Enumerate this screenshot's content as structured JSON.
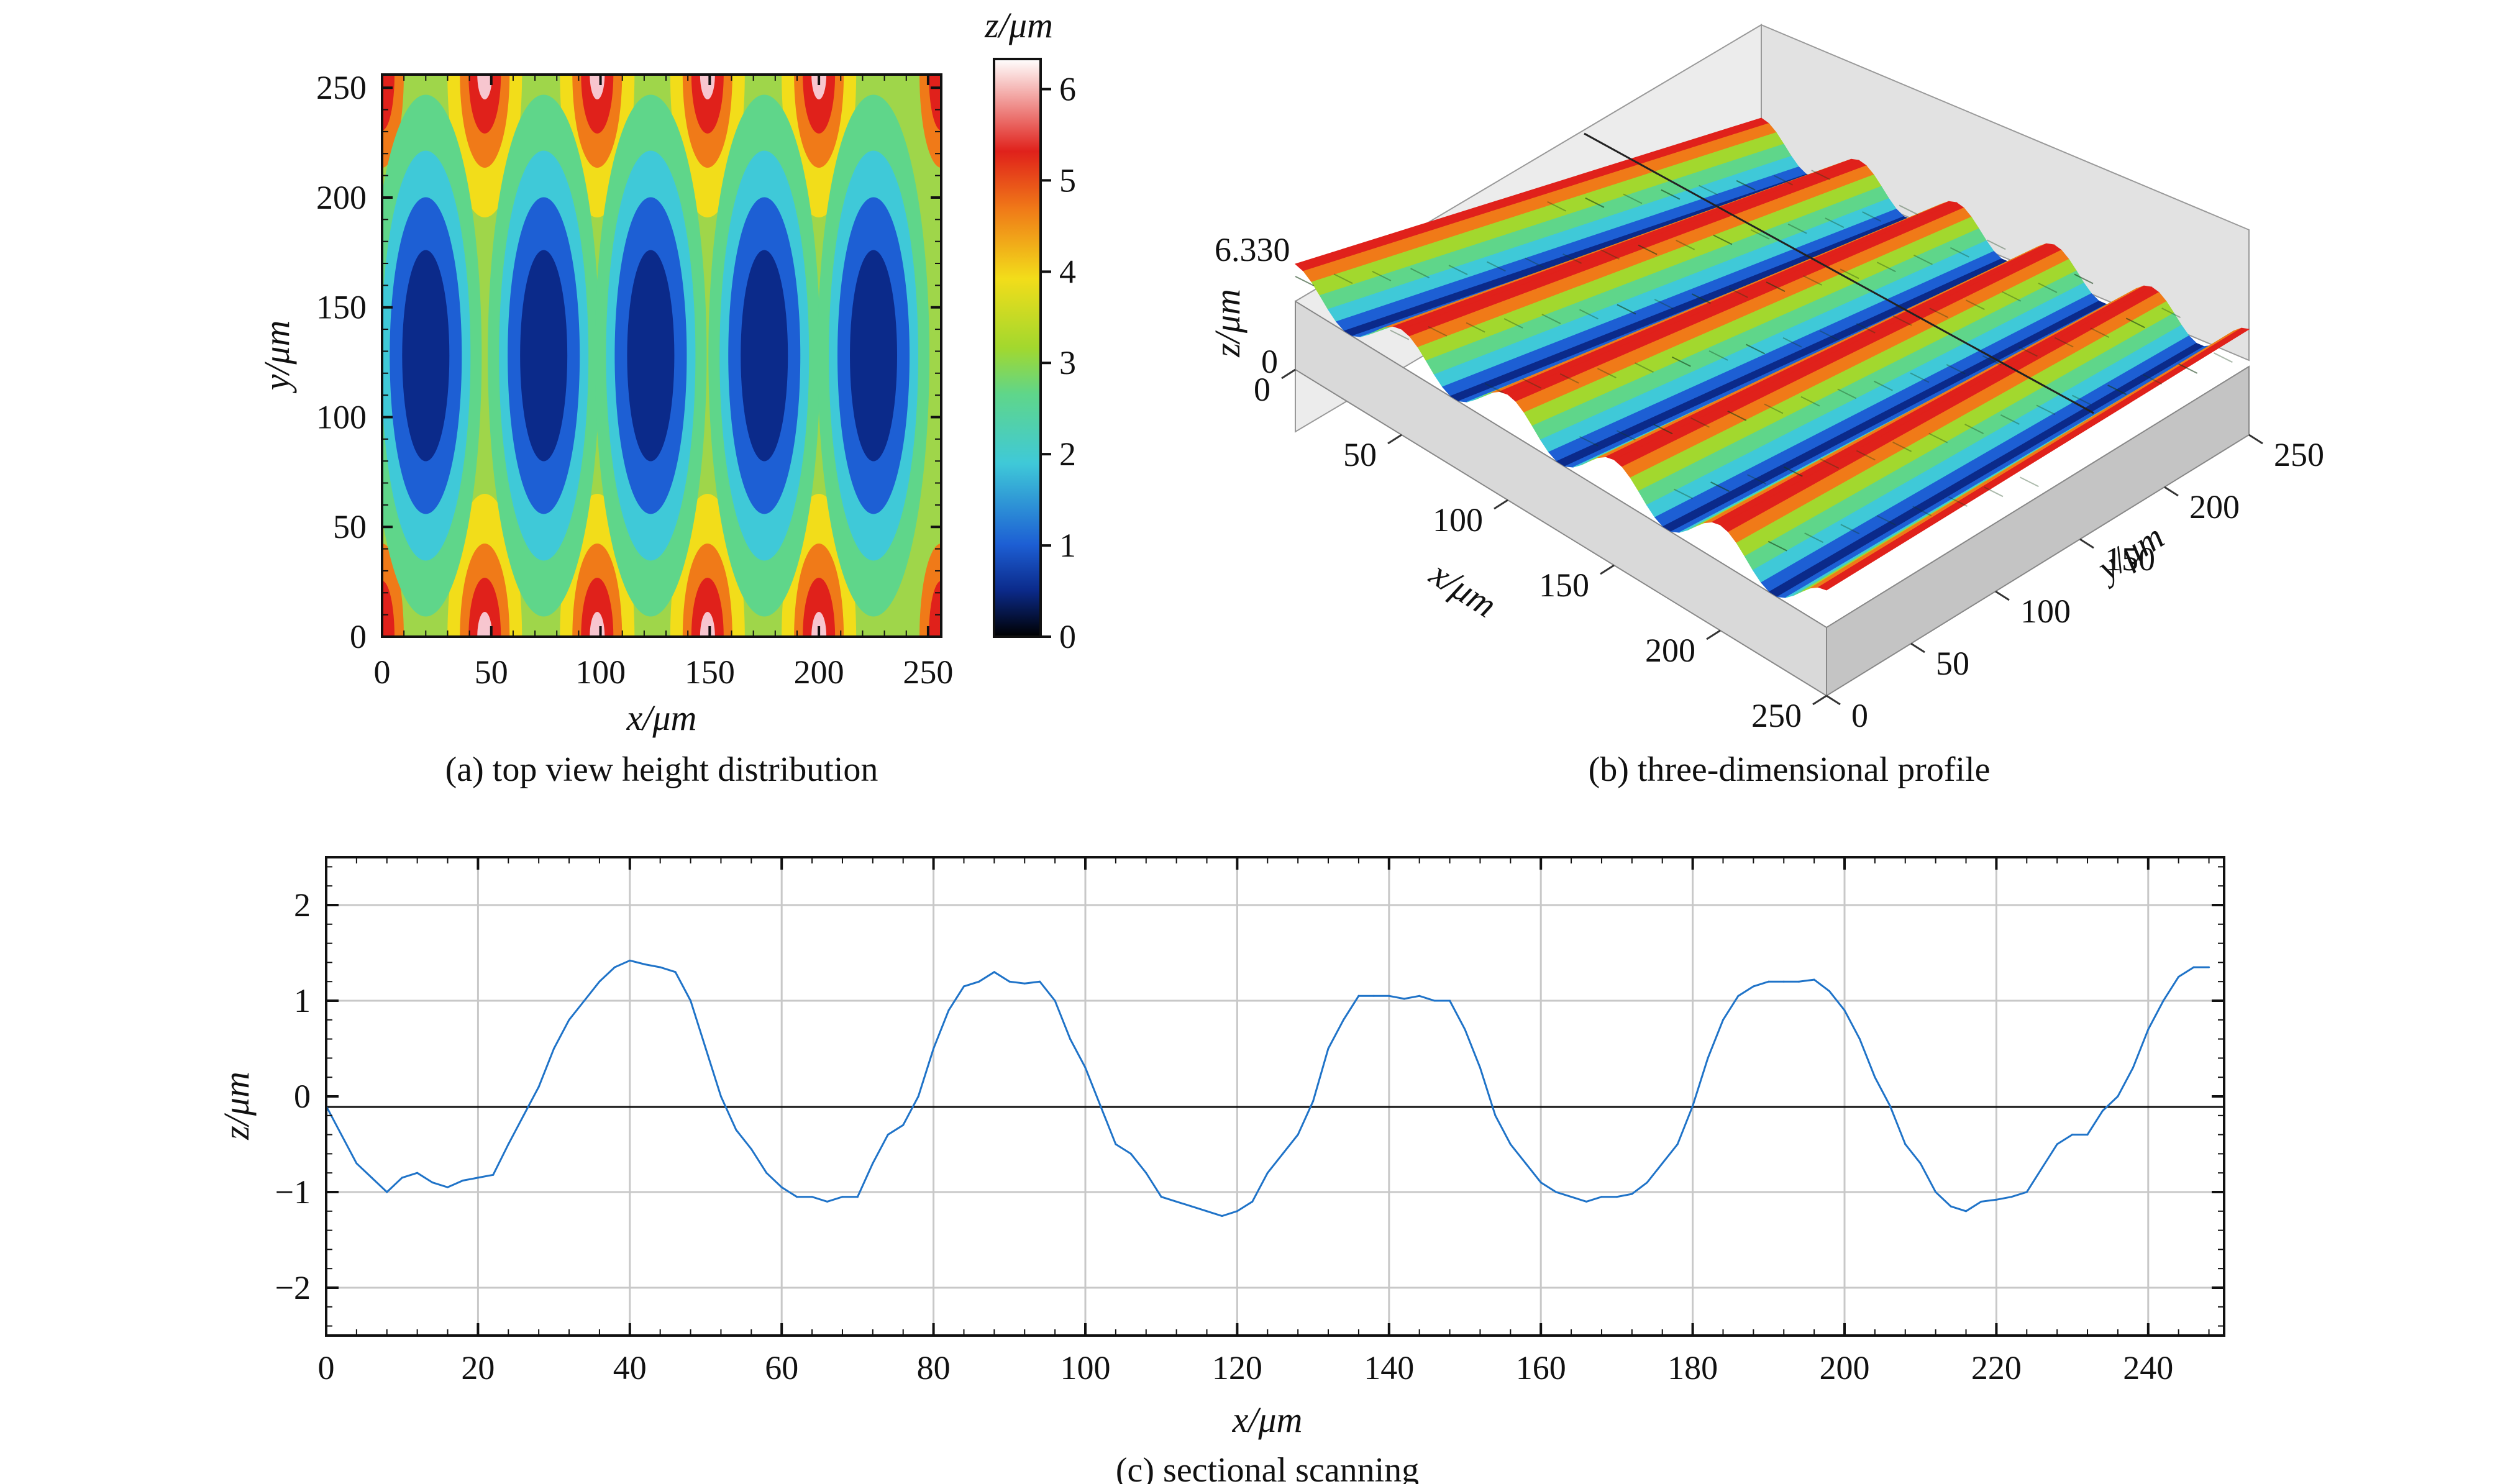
{
  "colors": {
    "line": "#1f73c8",
    "axis": "#111111",
    "grid": "#c8c8c8",
    "colormap": [
      "#000000",
      "#0b2a8a",
      "#1d5fd4",
      "#3fc9d8",
      "#5fd68a",
      "#a2d82e",
      "#f2dd1a",
      "#f07a18",
      "#e0211b",
      "#ffffff"
    ]
  },
  "chart_data": [
    {
      "id": "a",
      "type": "heatmap",
      "caption": "(a) top view height distribution",
      "xlabel": "x/μm",
      "ylabel": "y/μm",
      "xlim": [
        0,
        256
      ],
      "ylim": [
        0,
        256
      ],
      "xticks": [
        "0",
        "50",
        "100",
        "150",
        "200",
        "250"
      ],
      "yticks": [
        "0",
        "50",
        "100",
        "150",
        "200",
        "250"
      ],
      "valley_centers_x": [
        20,
        74,
        123,
        175,
        225
      ],
      "valley_center_y": 128,
      "colorbar": {
        "label": "z/μm",
        "range": [
          0,
          6.33
        ],
        "ticks": [
          "0",
          "1",
          "2",
          "3",
          "4",
          "5",
          "6"
        ]
      }
    },
    {
      "id": "b",
      "type": "surface3d",
      "caption": "(b) three-dimensional profile",
      "xlabel": "x/μm",
      "ylabel": "y/μm",
      "zlabel": "z/μm",
      "zmax_label": "6.330",
      "zmin_label": "0",
      "xticks": [
        "0",
        "50",
        "100",
        "150",
        "200",
        "250"
      ],
      "yticks": [
        "0",
        "50",
        "100",
        "150",
        "200",
        "250"
      ],
      "ridges": 5
    },
    {
      "id": "c",
      "type": "line",
      "caption": "(c) sectional scanning",
      "xlabel": "x/μm",
      "ylabel": "z/μm",
      "xlim": [
        0,
        250
      ],
      "ylim": [
        -2.5,
        2.5
      ],
      "xticks": [
        "0",
        "20",
        "40",
        "60",
        "80",
        "100",
        "120",
        "140",
        "160",
        "180",
        "200",
        "220",
        "240"
      ],
      "yticks": [
        "−2",
        "−1",
        "0",
        "1",
        "2"
      ],
      "grid": true,
      "x": [
        0,
        2,
        4,
        6,
        8,
        10,
        12,
        14,
        16,
        18,
        20,
        22,
        24,
        26,
        28,
        30,
        32,
        34,
        36,
        38,
        40,
        42,
        44,
        46,
        48,
        50,
        52,
        54,
        56,
        58,
        60,
        62,
        64,
        66,
        68,
        70,
        72,
        74,
        76,
        78,
        80,
        82,
        84,
        86,
        88,
        90,
        92,
        94,
        96,
        98,
        100,
        102,
        104,
        106,
        108,
        110,
        112,
        114,
        116,
        118,
        120,
        122,
        124,
        126,
        128,
        130,
        132,
        134,
        136,
        138,
        140,
        142,
        144,
        146,
        148,
        150,
        152,
        154,
        156,
        158,
        160,
        162,
        164,
        166,
        168,
        170,
        172,
        174,
        176,
        178,
        180,
        182,
        184,
        186,
        188,
        190,
        192,
        194,
        196,
        198,
        200,
        202,
        204,
        206,
        208,
        210,
        212,
        214,
        216,
        218,
        220,
        222,
        224,
        226,
        228,
        230,
        232,
        234,
        236,
        238,
        240,
        242,
        244,
        246,
        248
      ],
      "y": [
        -0.1,
        -0.4,
        -0.7,
        -0.85,
        -1.0,
        -0.85,
        -0.8,
        -0.9,
        -0.95,
        -0.88,
        -0.85,
        -0.82,
        -0.5,
        -0.2,
        0.1,
        0.5,
        0.8,
        1.0,
        1.2,
        1.35,
        1.42,
        1.38,
        1.35,
        1.3,
        1.0,
        0.5,
        0.0,
        -0.35,
        -0.55,
        -0.8,
        -0.95,
        -1.05,
        -1.05,
        -1.1,
        -1.05,
        -1.05,
        -0.7,
        -0.4,
        -0.3,
        0.0,
        0.5,
        0.9,
        1.15,
        1.2,
        1.3,
        1.2,
        1.18,
        1.2,
        1.0,
        0.6,
        0.3,
        -0.1,
        -0.5,
        -0.6,
        -0.8,
        -1.05,
        -1.1,
        -1.15,
        -1.2,
        -1.25,
        -1.2,
        -1.1,
        -0.8,
        -0.6,
        -0.4,
        -0.05,
        0.5,
        0.8,
        1.05,
        1.05,
        1.05,
        1.02,
        1.05,
        1.0,
        1.0,
        0.7,
        0.3,
        -0.2,
        -0.5,
        -0.7,
        -0.9,
        -1.0,
        -1.05,
        -1.1,
        -1.05,
        -1.05,
        -1.02,
        -0.9,
        -0.7,
        -0.5,
        -0.1,
        0.4,
        0.8,
        1.05,
        1.15,
        1.2,
        1.2,
        1.2,
        1.22,
        1.1,
        0.9,
        0.6,
        0.2,
        -0.1,
        -0.5,
        -0.7,
        -1.0,
        -1.15,
        -1.2,
        -1.1,
        -1.08,
        -1.05,
        -1.0,
        -0.75,
        -0.5,
        -0.4,
        -0.4,
        -0.15,
        0.0,
        0.3,
        0.7,
        1.0,
        1.25,
        1.35,
        1.35
      ]
    }
  ]
}
